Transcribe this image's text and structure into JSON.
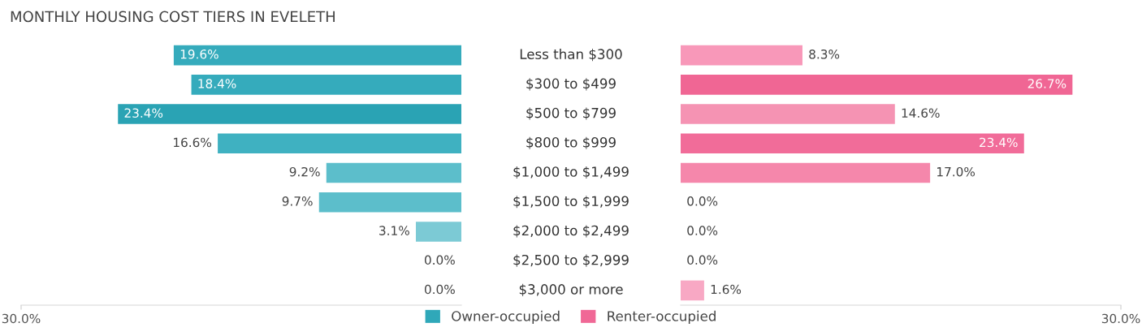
{
  "chart_data": [
    {
      "type": "bar",
      "orientation": "horizontal",
      "title": "MONTHLY HOUSING COST TIERS IN EVELETH",
      "categories": [
        "Less than $300",
        "$300 to $499",
        "$500 to $799",
        "$800 to $999",
        "$1,000 to $1,499",
        "$1,500 to $1,999",
        "$2,000 to $2,499",
        "$2,500 to $2,999",
        "$3,000 or more"
      ],
      "series": [
        {
          "name": "Owner-occupied",
          "color": "#2fa8b9",
          "colors": [
            "#35abbc",
            "#35abbc",
            "#2aa3b4",
            "#3fb1c1",
            "#5cbecb",
            "#5cbecb",
            "#7ccad5",
            "#8cd1db",
            "#8cd1db"
          ],
          "values": [
            19.6,
            18.4,
            23.4,
            16.6,
            9.2,
            9.7,
            3.1,
            0.0,
            0.0
          ],
          "value_labels": [
            "19.6%",
            "18.4%",
            "23.4%",
            "16.6%",
            "9.2%",
            "9.7%",
            "3.1%",
            "0.0%",
            "0.0%"
          ]
        }
      ],
      "xlim": [
        30,
        0
      ],
      "xticks": [
        {
          "value": 30,
          "label": "30.0%"
        }
      ],
      "grid": false,
      "legend": "bottom"
    },
    {
      "type": "bar",
      "orientation": "horizontal",
      "categories": [
        null,
        null,
        null,
        null,
        null,
        null,
        null,
        null,
        null
      ],
      "series": [
        {
          "name": "Renter-occupied",
          "color": "#f06896",
          "colors": [
            "#f898b9",
            "#f06694",
            "#f593b3",
            "#f16c99",
            "#f587ab",
            "#f8a8c4",
            "#f8a8c4",
            "#f8a8c4",
            "#f8a8c4"
          ],
          "values": [
            8.3,
            26.7,
            14.6,
            23.4,
            17.0,
            0.0,
            0.0,
            0.0,
            1.6
          ],
          "value_labels": [
            "8.3%",
            "26.7%",
            "14.6%",
            "23.4%",
            "17.0%",
            "0.0%",
            "0.0%",
            "0.0%",
            "1.6%"
          ]
        }
      ],
      "xlim": [
        0,
        30
      ],
      "xticks": [
        {
          "value": 30,
          "label": "30.0%"
        }
      ],
      "grid": false,
      "legend": "bottom"
    }
  ]
}
